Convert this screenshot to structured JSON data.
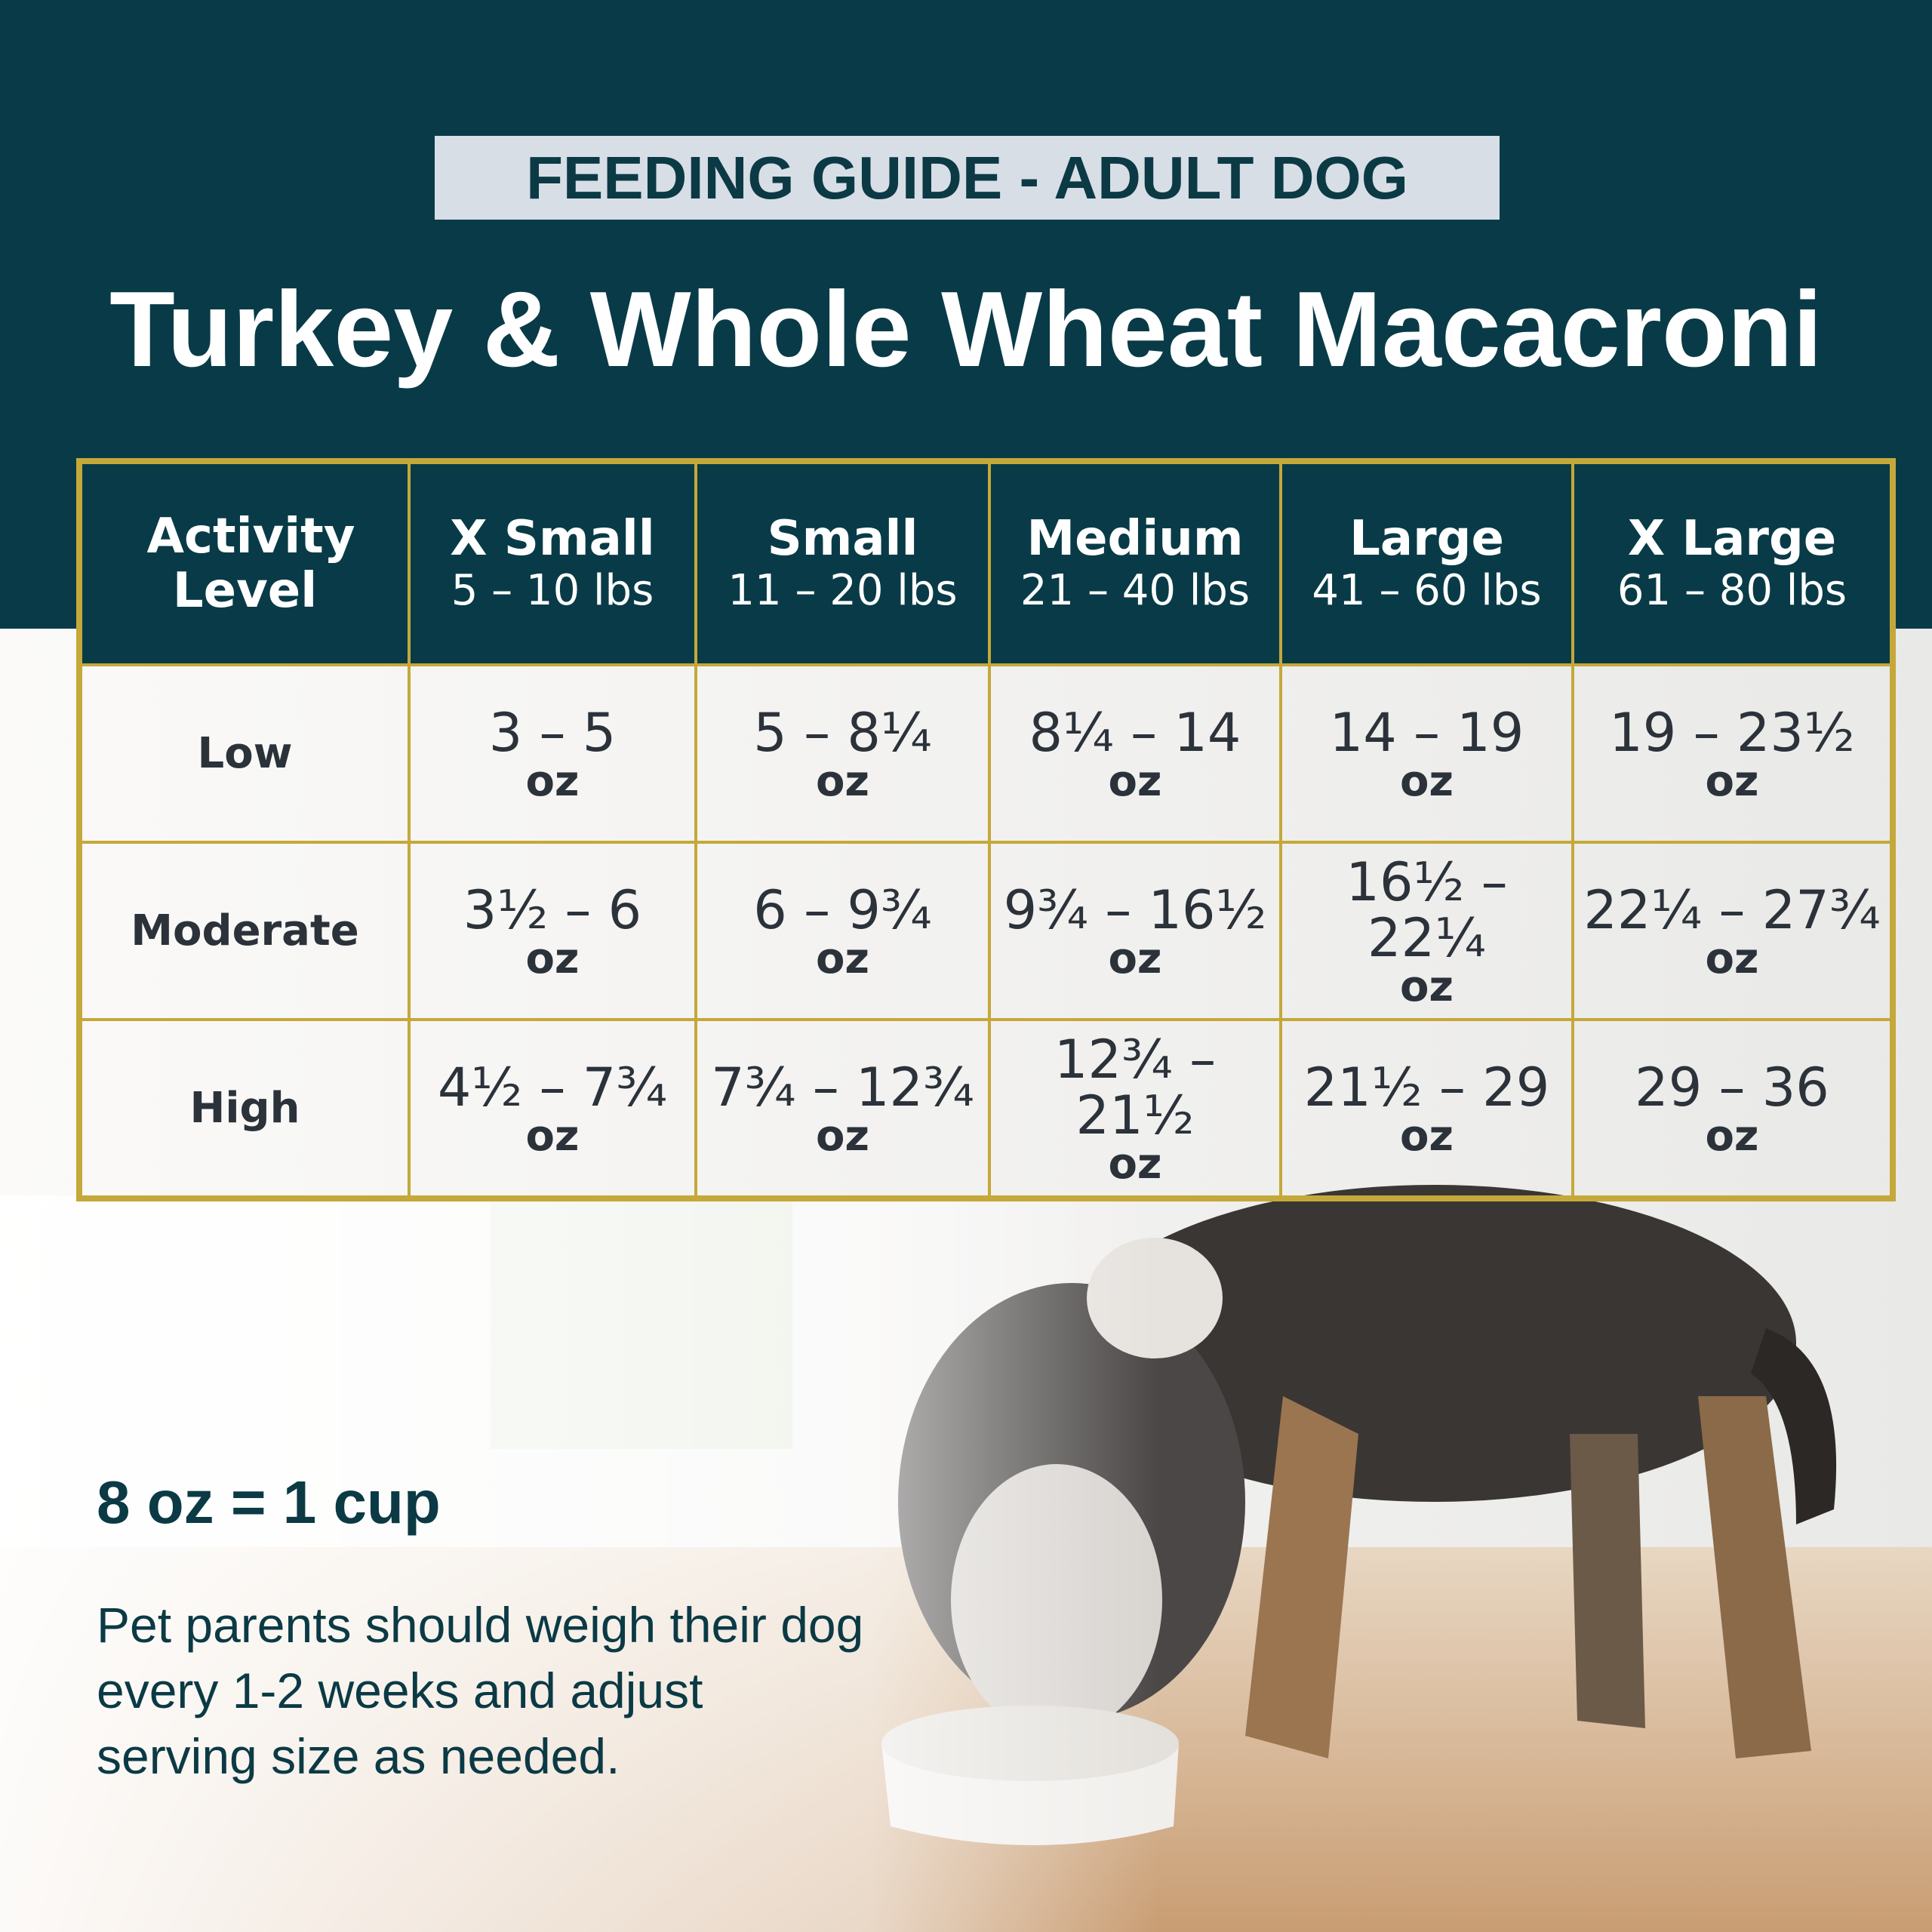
{
  "header": {
    "badge": "FEEDING GUIDE - ADULT DOG",
    "title": "Turkey & Whole Wheat Macacroni"
  },
  "table": {
    "columns": [
      {
        "name": "Activity Level"
      },
      {
        "name": "X Small",
        "range": "5 – 10 lbs"
      },
      {
        "name": "Small",
        "range": "11 – 20 lbs"
      },
      {
        "name": "Medium",
        "range": "21 – 40 lbs"
      },
      {
        "name": "Large",
        "range": "41 – 60 lbs"
      },
      {
        "name": "X Large",
        "range": "61 – 80 lbs"
      }
    ],
    "rows": [
      {
        "level": "Low",
        "cells": [
          {
            "amount": "3 – 5",
            "unit": "oz"
          },
          {
            "amount": "5 – 8¼",
            "unit": "oz"
          },
          {
            "amount": "8¼ – 14",
            "unit": "oz"
          },
          {
            "amount": "14 – 19",
            "unit": "oz"
          },
          {
            "amount": "19 – 23½",
            "unit": "oz"
          }
        ]
      },
      {
        "level": "Moderate",
        "cells": [
          {
            "amount": "3½ – 6",
            "unit": "oz"
          },
          {
            "amount": "6 – 9¾",
            "unit": "oz"
          },
          {
            "amount": "9¾ – 16½",
            "unit": "oz"
          },
          {
            "amount": "16½ – 22¼",
            "unit": "oz"
          },
          {
            "amount": "22¼ – 27¾",
            "unit": "oz"
          }
        ]
      },
      {
        "level": "High",
        "cells": [
          {
            "amount": "4½ – 7¾",
            "unit": "oz"
          },
          {
            "amount": "7¾ – 12¾",
            "unit": "oz"
          },
          {
            "amount": "12¾ – 21½",
            "unit": "oz"
          },
          {
            "amount": "21½ – 29",
            "unit": "oz"
          },
          {
            "amount": "29 – 36",
            "unit": "oz"
          }
        ]
      }
    ]
  },
  "footer": {
    "conversion": "8 oz = 1 cup",
    "note": "Pet parents should weigh their dog every 1-2 weeks and adjust serving size as needed."
  }
}
